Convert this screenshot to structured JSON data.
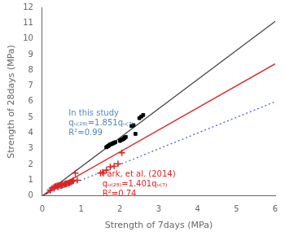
{
  "chart_data": {
    "type": "scatter",
    "xlabel": "Strength of 7days (MPa)",
    "ylabel": "Strength of 28days (MPa)",
    "xlim": [
      0,
      6
    ],
    "ylim": [
      0,
      12
    ],
    "xticks": [
      0,
      1,
      2,
      3,
      4,
      5,
      6
    ],
    "yticks": [
      0,
      1,
      2,
      3,
      4,
      5,
      6,
      7,
      8,
      9,
      10,
      11,
      12
    ],
    "grid": false,
    "series": [
      {
        "type": "line",
        "x": [
          0,
          6
        ],
        "values": [
          0,
          6
        ],
        "color": "#5566cc",
        "line_style": "dotted"
      },
      {
        "type": "line",
        "x": [
          0,
          6
        ],
        "values": [
          0,
          11.106
        ],
        "color": "#444444",
        "line_style": "solid"
      },
      {
        "type": "line",
        "x": [
          0,
          6
        ],
        "values": [
          0,
          8.406
        ],
        "color": "#dd2222",
        "line_style": "solid"
      },
      {
        "type": "scatter",
        "marker": "square",
        "color": "#000000",
        "x": [
          1.65,
          1.68,
          1.7,
          1.72,
          1.75,
          1.78,
          1.8,
          1.82,
          1.85,
          1.88,
          2.0,
          2.02,
          2.05,
          2.08,
          2.1,
          2.12,
          2.15,
          2.3,
          2.35,
          2.4,
          2.5,
          2.55,
          2.6
        ],
        "values": [
          3.1,
          3.15,
          3.18,
          3.22,
          3.28,
          3.3,
          3.32,
          3.35,
          3.38,
          3.42,
          3.5,
          3.55,
          3.58,
          3.62,
          3.65,
          3.7,
          3.75,
          4.45,
          4.5,
          3.95,
          4.95,
          5.05,
          5.15
        ]
      },
      {
        "type": "scatter",
        "marker": "cross",
        "color": "#dd2222",
        "x": [
          0.2,
          0.25,
          0.3,
          0.32,
          0.35,
          0.38,
          0.4,
          0.42,
          0.45,
          0.48,
          0.5,
          0.52,
          0.55,
          0.58,
          0.6,
          0.62,
          0.65,
          0.68,
          0.7,
          0.72,
          0.75,
          0.78,
          0.8,
          0.85,
          0.9,
          1.5,
          1.55,
          1.65,
          1.75,
          1.85,
          1.95,
          2.05
        ],
        "values": [
          0.38,
          0.5,
          0.55,
          0.58,
          0.62,
          0.63,
          0.65,
          0.65,
          0.67,
          0.68,
          0.7,
          0.72,
          0.72,
          0.75,
          0.78,
          0.78,
          0.8,
          0.82,
          0.85,
          0.88,
          0.9,
          0.95,
          1.0,
          1.45,
          1.0,
          1.45,
          1.5,
          1.65,
          1.85,
          1.9,
          2.05,
          2.75
        ]
      }
    ],
    "annotations": [
      {
        "text": [
          "In this study",
          "qᵤ₍₂₈₎=1.851qᵤ₍₇₎",
          "R²=0.99"
        ],
        "x": 0.68,
        "y": 5.25,
        "color": "#5588bb"
      },
      {
        "text": [
          "Park, et al. (2014)",
          "qᵤ₍₂₈₎=1.401qᵤ₍₇₎",
          "R²=0.74"
        ],
        "x": 1.55,
        "y": 1.35,
        "color": "#dd2222"
      }
    ]
  }
}
